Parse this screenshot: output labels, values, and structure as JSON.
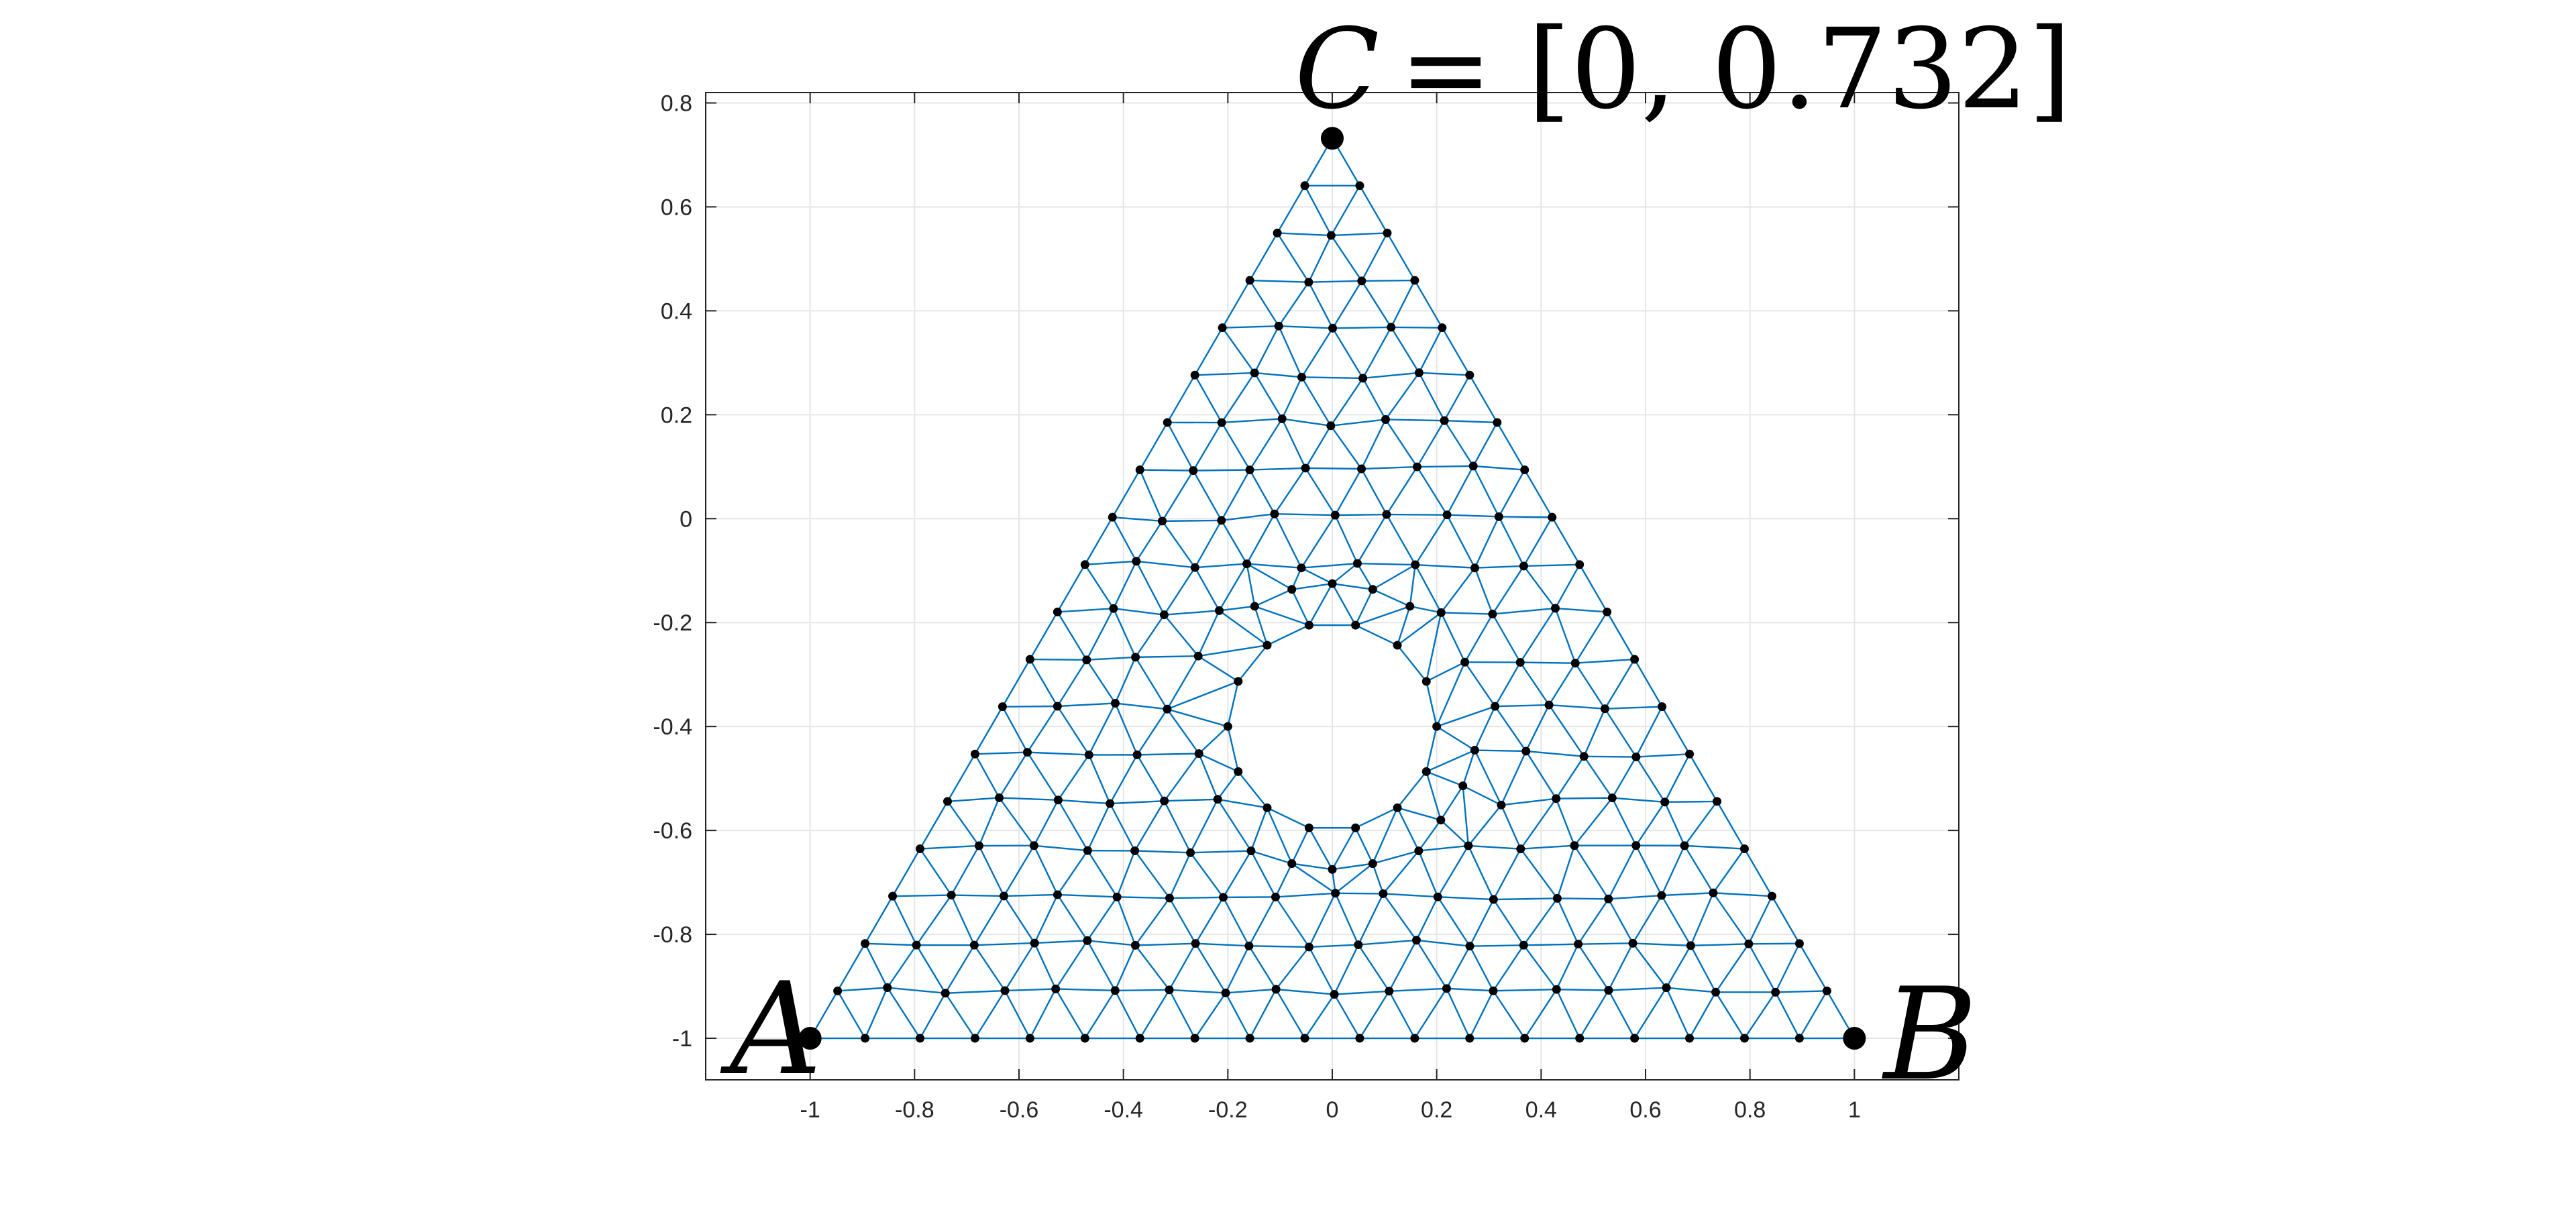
{
  "figure": {
    "xlim": [
      -1.2,
      1.2
    ],
    "ylim": [
      -1.08,
      0.82
    ],
    "grid": true,
    "x_ticks": [
      -1,
      -0.8,
      -0.6,
      -0.4,
      -0.2,
      0,
      0.2,
      0.4,
      0.6,
      0.8,
      1
    ],
    "y_ticks": [
      0.8,
      0.6,
      0.4,
      0.2,
      0,
      -0.2,
      -0.4,
      -0.6,
      -0.8,
      -1
    ],
    "x_tick_labels": [
      "-1",
      "-0.8",
      "-0.6",
      "-0.4",
      "-0.2",
      "0",
      "0.2",
      "0.4",
      "0.6",
      "0.8",
      "1"
    ],
    "y_tick_labels": [
      "0.8",
      "0.6",
      "0.4",
      "0.2",
      "0",
      "-0.2",
      "-0.4",
      "-0.6",
      "-0.8",
      "-1"
    ],
    "colors": {
      "mesh": "#0072BD",
      "nodes": "#000000",
      "grid": "#e6e6e6",
      "axes": "#262626"
    }
  },
  "mesh": {
    "triangle_vertices": {
      "A": [
        -1,
        -1
      ],
      "B": [
        1,
        -1
      ],
      "C": [
        0,
        0.732
      ]
    },
    "hole": {
      "center": [
        0,
        -0.4
      ],
      "radius": 0.2
    },
    "row_spacing": 0.09,
    "column_spacing": 0.105
  },
  "labels": {
    "vertex_a": "A",
    "vertex_b": "B",
    "coord_var": "C",
    "coord_value": "= [0, 0.732]"
  }
}
